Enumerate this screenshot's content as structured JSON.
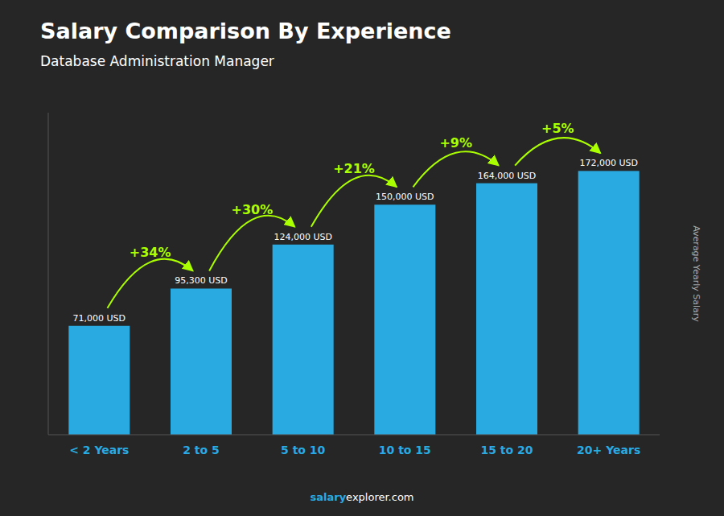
{
  "chart_data": {
    "type": "bar",
    "title": "Salary Comparison By Experience",
    "subtitle": "Database Administration Manager",
    "y_label": "Average Yearly Salary",
    "categories": [
      "< 2 Years",
      "2 to 5",
      "5 to 10",
      "10 to 15",
      "15 to 20",
      "20+ Years"
    ],
    "values": [
      71000,
      95300,
      124000,
      150000,
      164000,
      172000
    ],
    "value_labels": [
      "71,000 USD",
      "95,300 USD",
      "124,000 USD",
      "150,000 USD",
      "164,000 USD",
      "172,000 USD"
    ],
    "data_labels": true,
    "annotations": [
      "+34%",
      "+30%",
      "+21%",
      "+9%",
      "+5%"
    ],
    "footer": [
      "salary",
      "explorer.com"
    ],
    "color": "#29ABE2",
    "ylim": [
      0,
      210000
    ],
    "tick_labels": "x",
    "grid": false
  }
}
